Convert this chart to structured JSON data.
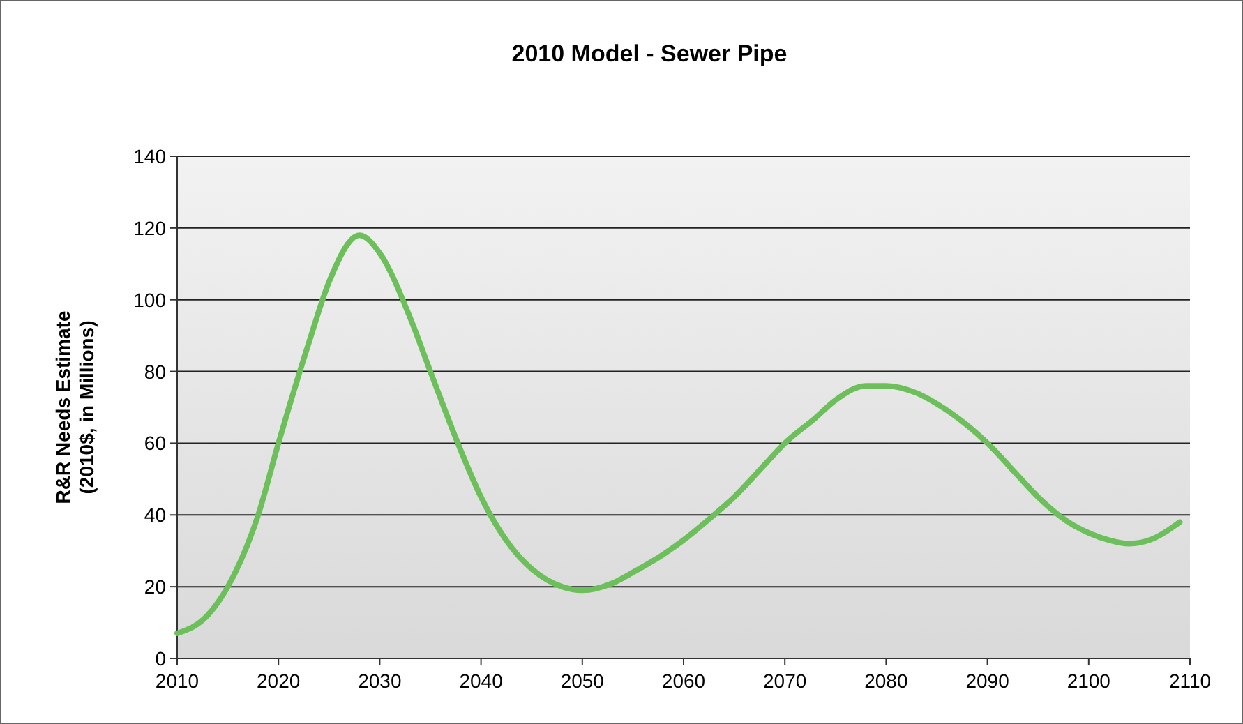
{
  "chart_data": {
    "type": "line",
    "title": "2010 Model - Sewer Pipe",
    "ylabel": "R&R Needs Estimate\n(2010$, in Millions)",
    "x": [
      2010,
      2013,
      2015,
      2018,
      2020,
      2023,
      2025,
      2028,
      2030,
      2033,
      2035,
      2038,
      2040,
      2043,
      2045,
      2048,
      2050,
      2053,
      2055,
      2058,
      2060,
      2063,
      2065,
      2068,
      2070,
      2073,
      2075,
      2078,
      2080,
      2083,
      2085,
      2088,
      2090,
      2093,
      2095,
      2098,
      2100,
      2102,
      2104,
      2106,
      2109
    ],
    "series": [
      {
        "color": "#6cbf5a",
        "values": [
          7,
          12,
          20,
          40,
          60,
          88,
          105,
          118,
          113,
          95,
          80,
          58,
          45,
          31,
          25,
          20,
          19,
          21,
          24,
          29,
          33,
          40,
          45,
          54,
          60,
          67,
          72,
          76,
          76,
          74,
          71,
          65,
          60,
          51,
          45,
          38,
          35,
          33,
          32,
          33,
          38
        ]
      }
    ],
    "xlim": [
      2010,
      2110
    ],
    "xticks": [
      2010,
      2020,
      2030,
      2040,
      2050,
      2060,
      2070,
      2080,
      2090,
      2100,
      2110
    ],
    "ylim": [
      0,
      140
    ],
    "yticks": [
      0,
      20,
      40,
      60,
      80,
      100,
      120,
      140
    ],
    "grid": "y",
    "marker": "none",
    "line_style": "solid"
  }
}
